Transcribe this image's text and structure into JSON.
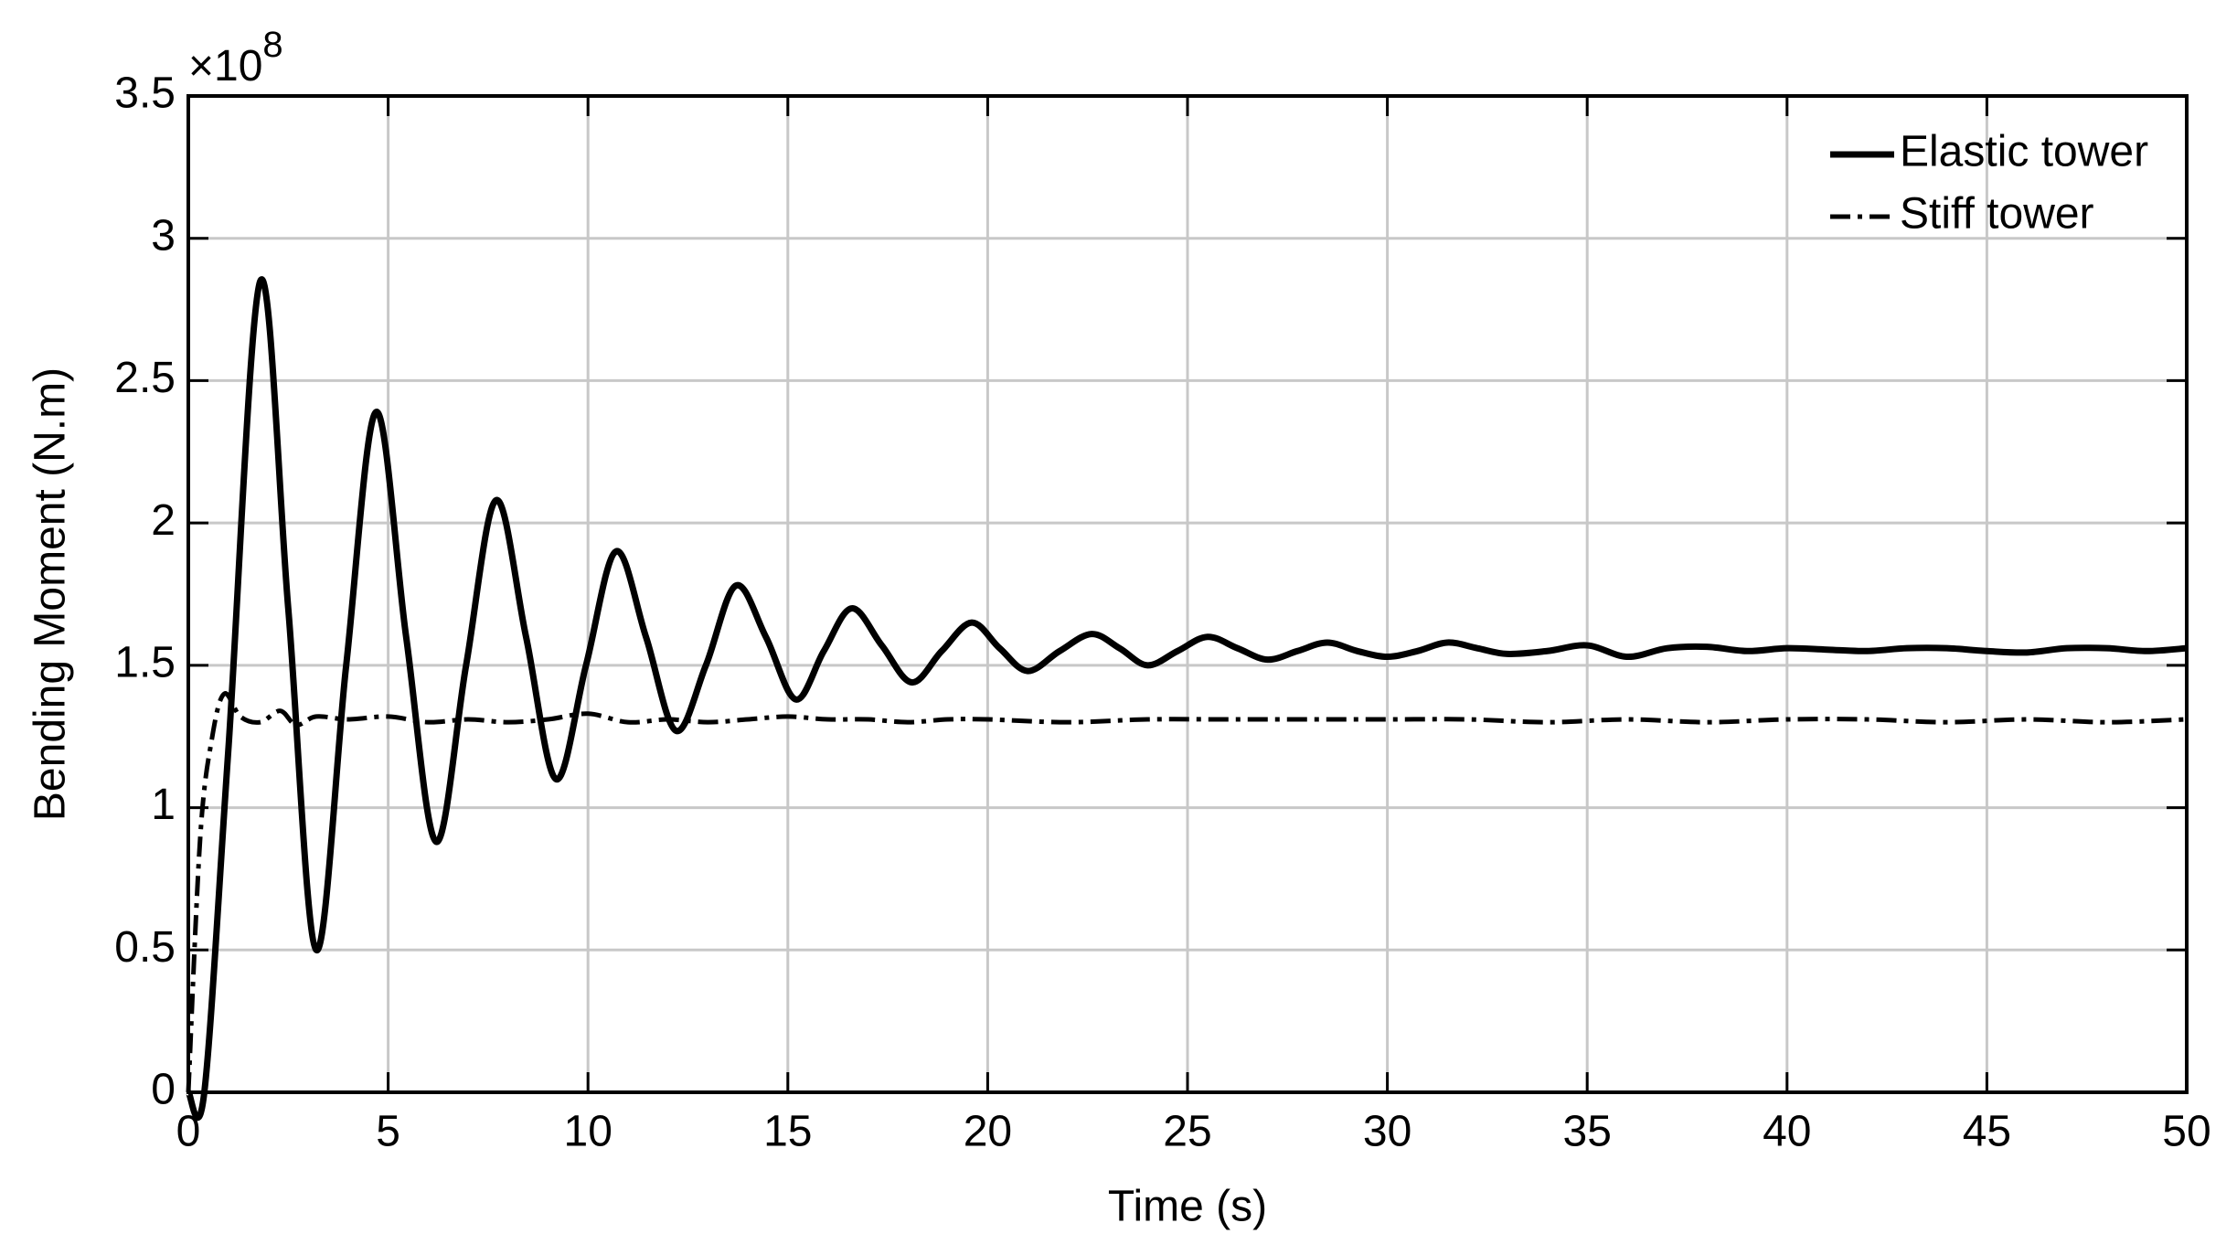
{
  "chart_data": {
    "type": "line",
    "x_label": "Time (s)",
    "y_label": "Bending Moment (N.m)",
    "y_multiplier": {
      "base": "×10",
      "exponent": "8"
    },
    "xlim": [
      0,
      50
    ],
    "xticks": [
      0,
      5,
      10,
      15,
      20,
      25,
      30,
      35,
      40,
      45,
      50
    ],
    "ylim": [
      0,
      3.5
    ],
    "yticks": [
      0,
      0.5,
      1,
      1.5,
      2,
      2.5,
      3,
      3.5
    ],
    "grid": true,
    "legend": "top-right",
    "series": [
      {
        "name": "Elastic tower",
        "color": "#000000",
        "dash": "solid",
        "x": [
          0,
          0.4,
          1.0,
          1.8,
          2.5,
          3.2,
          3.95,
          4.7,
          5.45,
          6.2,
          6.95,
          7.7,
          8.45,
          9.2,
          9.95,
          10.7,
          11.45,
          12.2,
          12.95,
          13.7,
          14.45,
          15.2,
          15.9,
          16.6,
          17.35,
          18.1,
          18.85,
          19.6,
          20.3,
          21.0,
          21.8,
          22.6,
          23.3,
          24.0,
          24.75,
          25.5,
          26.25,
          27.0,
          27.75,
          28.5,
          29.25,
          30.0,
          30.75,
          31.5,
          32.25,
          33.0,
          34,
          35,
          36,
          37,
          38,
          39,
          40,
          41,
          42,
          43,
          44,
          45,
          46,
          47,
          48,
          49,
          50
        ],
        "values": [
          0,
          0,
          1.2,
          2.85,
          1.7,
          0.5,
          1.5,
          2.39,
          1.6,
          0.88,
          1.5,
          2.08,
          1.6,
          1.1,
          1.5,
          1.9,
          1.6,
          1.27,
          1.5,
          1.78,
          1.6,
          1.38,
          1.55,
          1.7,
          1.57,
          1.44,
          1.55,
          1.65,
          1.56,
          1.48,
          1.55,
          1.61,
          1.56,
          1.5,
          1.55,
          1.6,
          1.56,
          1.52,
          1.55,
          1.58,
          1.55,
          1.53,
          1.55,
          1.58,
          1.56,
          1.54,
          1.55,
          1.57,
          1.53,
          1.56,
          1.565,
          1.55,
          1.56,
          1.555,
          1.55,
          1.56,
          1.56,
          1.55,
          1.545,
          1.56,
          1.56,
          1.55,
          1.56
        ]
      },
      {
        "name": "Stiff tower",
        "color": "#000000",
        "dash": "dashdot",
        "x": [
          0,
          0.3,
          0.6,
          0.9,
          1.3,
          1.8,
          2.3,
          2.7,
          3.2,
          4,
          5,
          6,
          7,
          8,
          9,
          10,
          11,
          12,
          13,
          14,
          15,
          16,
          17,
          18,
          19,
          20,
          22,
          24,
          26,
          28,
          30,
          32,
          34,
          36,
          38,
          40,
          42,
          44,
          46,
          48,
          50
        ],
        "values": [
          0,
          0.9,
          1.25,
          1.4,
          1.32,
          1.3,
          1.34,
          1.29,
          1.32,
          1.31,
          1.32,
          1.3,
          1.31,
          1.3,
          1.31,
          1.33,
          1.3,
          1.31,
          1.3,
          1.31,
          1.32,
          1.31,
          1.31,
          1.3,
          1.31,
          1.31,
          1.3,
          1.31,
          1.31,
          1.31,
          1.31,
          1.31,
          1.3,
          1.31,
          1.3,
          1.31,
          1.31,
          1.3,
          1.31,
          1.3,
          1.31
        ]
      }
    ]
  }
}
